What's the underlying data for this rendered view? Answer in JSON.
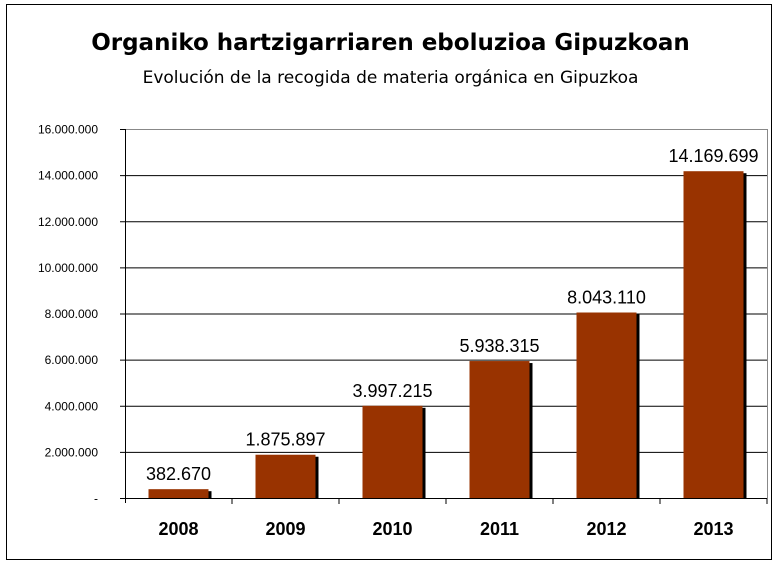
{
  "chart_data": {
    "type": "bar",
    "title": "Organiko hartzigarriaren eboluzioa Gipuzkoan",
    "subtitle": "Evolución de la recogida de materia orgánica en Gipuzkoa",
    "categories": [
      "2008",
      "2009",
      "2010",
      "2011",
      "2012",
      "2013"
    ],
    "values": [
      382670,
      1875897,
      3997215,
      5938315,
      8043110,
      14169699
    ],
    "data_labels": [
      "382.670",
      "1.875.897",
      "3.997.215",
      "5.938.315",
      "8.043.110",
      "14.169.699"
    ],
    "ylim": [
      0,
      16000000
    ],
    "yticks": [
      0,
      2000000,
      4000000,
      6000000,
      8000000,
      10000000,
      12000000,
      14000000,
      16000000
    ],
    "ytick_labels": [
      "-",
      "2.000.000",
      "4.000.000",
      "6.000.000",
      "8.000.000",
      "10.000.000",
      "12.000.000",
      "14.000.000",
      "16.000.000"
    ],
    "xlabel": "",
    "ylabel": "",
    "grid": true,
    "bar_color": "#993300",
    "shadow_color": "#000000"
  }
}
